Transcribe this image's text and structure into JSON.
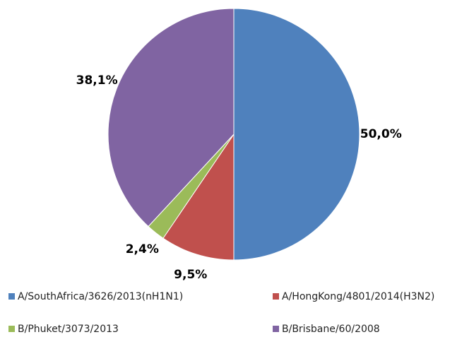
{
  "chart_data": {
    "type": "pie",
    "categories": [
      "A/SouthAfrica/3626/2013(nH1N1)",
      "A/HongKong/4801/2014(H3N2)",
      "B/Phuket/3073/2013",
      "B/Brisbane/60/2008"
    ],
    "values": [
      50.0,
      9.5,
      2.4,
      38.1
    ],
    "value_labels": [
      "50,0%",
      "9,5%",
      "2,4%",
      "38,1%"
    ],
    "colors": [
      "#4f81bd",
      "#c0504d",
      "#9bbb59",
      "#8064a2"
    ],
    "legend": "bottom"
  }
}
